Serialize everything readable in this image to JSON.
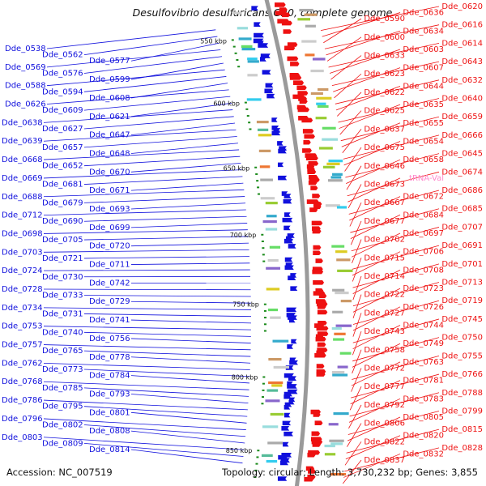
{
  "title": "Desulfovibrio desulfuricans G20, complete genome",
  "footer": {
    "accession": "Accession: NC_007519",
    "summary": "Topology: circular; Length: 3,730,232 bp; Genes: 3,855"
  },
  "colors": {
    "forward": "#ee1111",
    "reverse": "#1111dd",
    "backbone": "#9a9a9a",
    "tick": "#1a8a1a",
    "rna": "#ff88cc"
  },
  "kbp_ticks": [
    "550 kbp",
    "600 kbp",
    "650 kbp",
    "700 kbp",
    "750 kbp",
    "800 kbp",
    "850 kbp"
  ],
  "left_labels": [
    "Dde_0538",
    "Dde_0562",
    "Dde_0577",
    "Dde_0569",
    "Dde_0576",
    "Dde_0599",
    "Dde_0588",
    "Dde_0594",
    "Dde_0608",
    "Dde_0626",
    "Dde_0609",
    "Dde_0621",
    "Dde_0638",
    "Dde_0627",
    "Dde_0647",
    "Dde_0639",
    "Dde_0657",
    "Dde_0648",
    "Dde_0668",
    "Dde_0652",
    "Dde_0670",
    "Dde_0669",
    "Dde_0681",
    "Dde_0671",
    "Dde_0688",
    "Dde_0679",
    "Dde_0693",
    "Dde_0712",
    "Dde_0690",
    "Dde_0699",
    "Dde_0698",
    "Dde_0705",
    "Dde_0720",
    "Dde_0703",
    "Dde_0721",
    "Dde_0711",
    "Dde_0724",
    "Dde_0730",
    "Dde_0742",
    "Dde_0728",
    "Dde_0733",
    "Dde_0729",
    "Dde_0734",
    "Dde_0731",
    "Dde_0741",
    "Dde_0753",
    "Dde_0740",
    "Dde_0756",
    "Dde_0757",
    "Dde_0765",
    "Dde_0778",
    "Dde_0762",
    "Dde_0773",
    "Dde_0784",
    "Dde_0768",
    "Dde_0785",
    "Dde_0793",
    "Dde_0786",
    "Dde_0795",
    "Dde_0801",
    "Dde_0796",
    "Dde_0802",
    "Dde_0808",
    "Dde_0803",
    "Dde_0809",
    "Dde_0814"
  ],
  "right_labels": [
    "Dde_0620",
    "Dde_0636",
    "Dde_0590",
    "Dde_0616",
    "Dde_0634",
    "Dde_0600",
    "Dde_0614",
    "Dde_0603",
    "Dde_0633",
    "Dde_0643",
    "Dde_0607",
    "Dde_0623",
    "Dde_0632",
    "Dde_0644",
    "Dde_0622",
    "Dde_0640",
    "Dde_0635",
    "Dde_0625",
    "Dde_0659",
    "Dde_0655",
    "Dde_0637",
    "Dde_0666",
    "Dde_0654",
    "Dde_0675",
    "Dde_0645",
    "Dde_0658",
    "Dde_0646",
    "Dde_0674",
    "tRNA-Val",
    "Dde_0673",
    "Dde_0686",
    "Dde_0672",
    "Dde_0667",
    "Dde_0685",
    "Dde_0684",
    "Dde_0677",
    "Dde_0707",
    "Dde_0697",
    "Dde_0702",
    "Dde_0691",
    "Dde_0706",
    "Dde_0715",
    "Dde_0701",
    "Dde_0708",
    "Dde_0714",
    "Dde_0713",
    "Dde_0723",
    "Dde_0722",
    "Dde_0719",
    "Dde_0726",
    "Dde_0727",
    "Dde_0745",
    "Dde_0744",
    "Dde_0743",
    "Dde_0750",
    "Dde_0749",
    "Dde_0758",
    "Dde_0755",
    "Dde_0763",
    "Dde_0772",
    "Dde_0766",
    "Dde_0781",
    "Dde_0777",
    "Dde_0788",
    "Dde_0783",
    "Dde_0792",
    "Dde_0799",
    "Dde_0805",
    "Dde_0806",
    "Dde_0815",
    "Dde_0820",
    "Dde_0822",
    "Dde_0828",
    "Dde_0832",
    "Dde_0837"
  ]
}
